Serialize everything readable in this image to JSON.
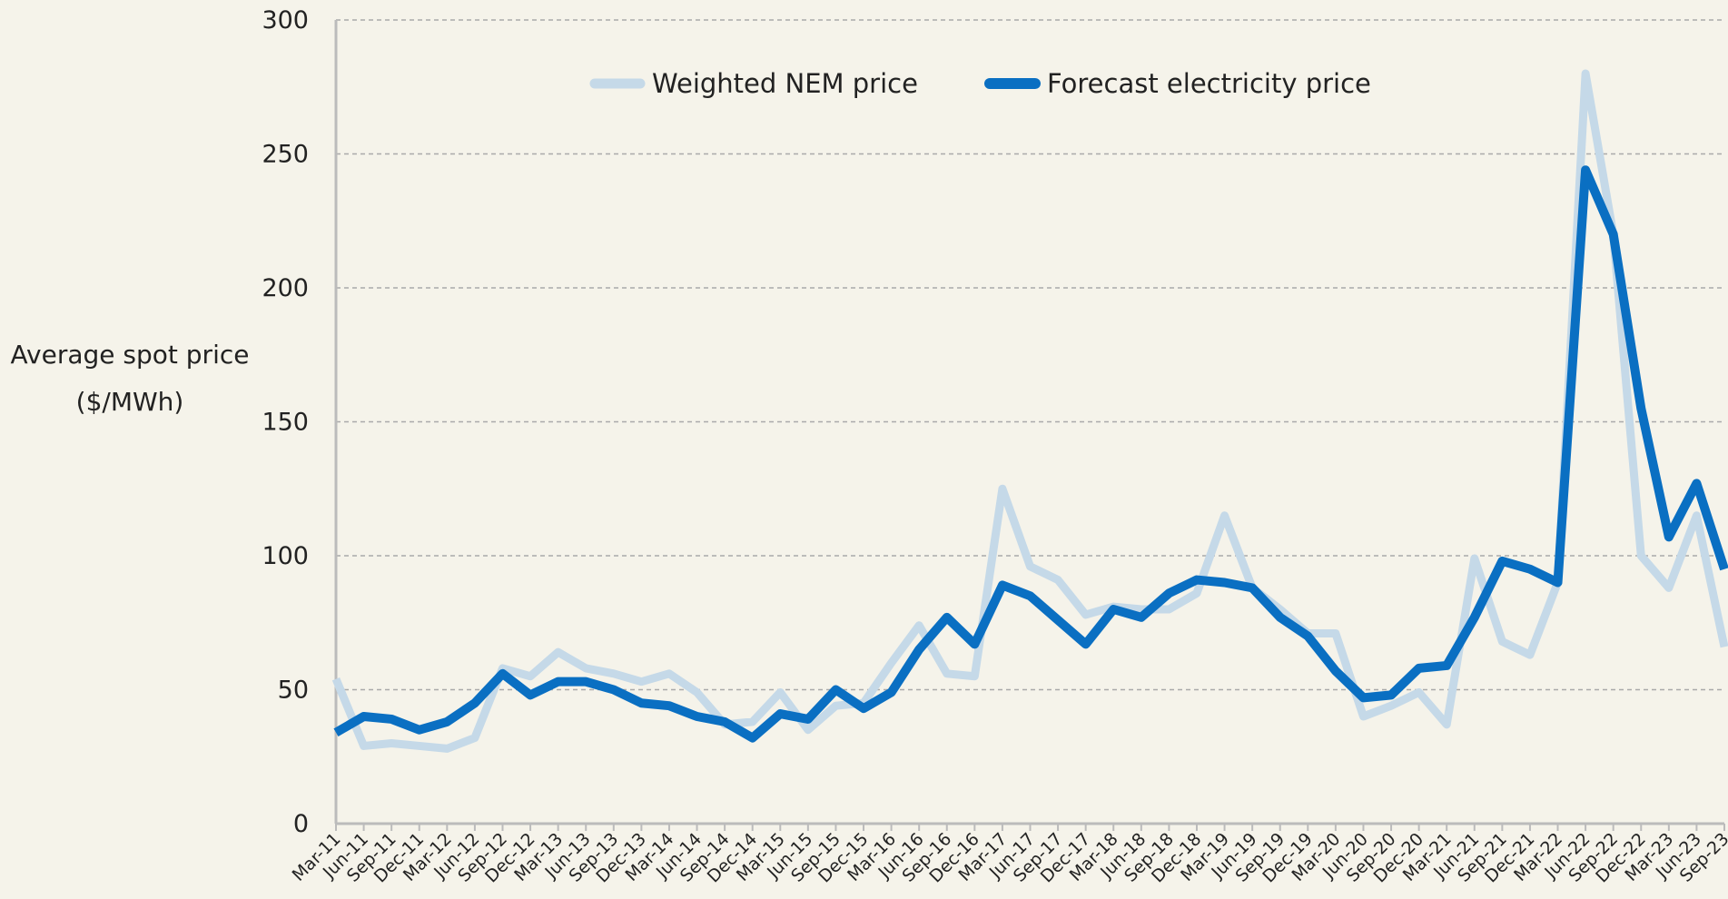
{
  "chart_data": {
    "type": "line",
    "y_label": [
      "Average spot price",
      "($/MWh)"
    ],
    "categories": [
      "Mar-11",
      "Jun-11",
      "Sep-11",
      "Dec-11",
      "Mar-12",
      "Jun-12",
      "Sep-12",
      "Dec-12",
      "Mar-13",
      "Jun-13",
      "Sep-13",
      "Dec-13",
      "Mar-14",
      "Jun-14",
      "Sep-14",
      "Dec-14",
      "Mar-15",
      "Jun-15",
      "Sep-15",
      "Dec-15",
      "Mar-16",
      "Jun-16",
      "Sep-16",
      "Dec-16",
      "Mar-17",
      "Jun-17",
      "Sep-17",
      "Dec-17",
      "Mar-18",
      "Jun-18",
      "Sep-18",
      "Dec-18",
      "Mar-19",
      "Jun-19",
      "Sep-19",
      "Dec-19",
      "Mar-20",
      "Jun-20",
      "Sep-20",
      "Dec-20",
      "Mar-21",
      "Jun-21",
      "Sep-21",
      "Dec-21",
      "Mar-22",
      "Jun-22",
      "Sep-22",
      "Dec-22",
      "Mar-23",
      "Jun-23",
      "Sep-23"
    ],
    "series": [
      {
        "name": "Weighted NEM price",
        "color": "#c5d9e8",
        "width": 9,
        "values": [
          54,
          29,
          30,
          29,
          28,
          32,
          58,
          55,
          64,
          58,
          56,
          53,
          56,
          49,
          37,
          38,
          49,
          35,
          44,
          45,
          60,
          74,
          56,
          55,
          125,
          96,
          91,
          78,
          81,
          80,
          80,
          86,
          115,
          88,
          80,
          71,
          71,
          40,
          44,
          49,
          37,
          99,
          68,
          63,
          90,
          280,
          220,
          100,
          88,
          115,
          66
        ]
      },
      {
        "name": "Forecast electricity price",
        "color": "#0a6fc2",
        "width": 10,
        "values": [
          34,
          40,
          39,
          35,
          38,
          45,
          56,
          48,
          53,
          53,
          50,
          45,
          44,
          40,
          38,
          32,
          41,
          39,
          50,
          43,
          49,
          65,
          77,
          67,
          89,
          85,
          76,
          67,
          80,
          77,
          86,
          91,
          90,
          88,
          77,
          70,
          57,
          47,
          48,
          58,
          59,
          77,
          98,
          95,
          90,
          244,
          220,
          155,
          107,
          127,
          95
        ]
      }
    ],
    "ylim": [
      0,
      300
    ],
    "yticks": [
      0,
      50,
      100,
      150,
      200,
      250,
      300
    ],
    "grid": true,
    "legend": "top"
  }
}
